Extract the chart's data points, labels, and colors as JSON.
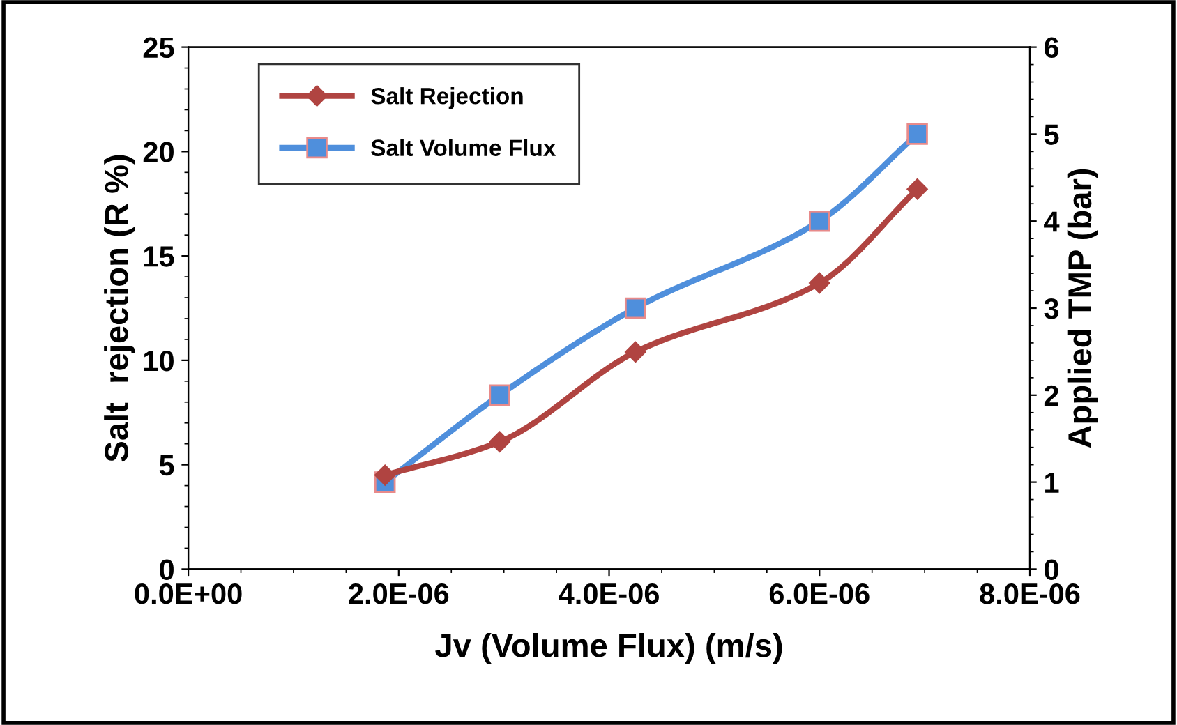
{
  "chart_data": {
    "type": "line",
    "xlabel": "Jv (Volume Flux) (m/s)",
    "ylabel": "Salt  rejection (R %)",
    "y2label": "Applied TMP (bar)",
    "x": [
      1.87e-06,
      2.96e-06,
      4.25e-06,
      6e-06,
      6.93e-06
    ],
    "series": [
      {
        "name": "Salt Rejection",
        "color": "#b04441",
        "marker": "diamond",
        "values": [
          4.5,
          6.1,
          10.4,
          13.7,
          18.2
        ]
      },
      {
        "name": "Salt Volume Flux",
        "color": "#4f8fdc",
        "marker": "square",
        "axis": "y2",
        "values": [
          1,
          2,
          3,
          4,
          5
        ]
      }
    ],
    "xlim": [
      0,
      8e-06
    ],
    "xticks": [
      {
        "value": 0,
        "label": "0.0E+00"
      },
      {
        "value": 2e-06,
        "label": "2.0E-06"
      },
      {
        "value": 4e-06,
        "label": "4.0E-06"
      },
      {
        "value": 6e-06,
        "label": "6.0E-06"
      },
      {
        "value": 8e-06,
        "label": "8.0E-06"
      }
    ],
    "ylim": [
      0,
      25
    ],
    "yticks": [
      0,
      5,
      10,
      15,
      20,
      25
    ],
    "y2lim": [
      0,
      6
    ],
    "y2ticks": [
      0,
      1,
      2,
      3,
      4,
      5,
      6
    ],
    "grid": false,
    "legend": "top left",
    "line_style": "solid"
  }
}
